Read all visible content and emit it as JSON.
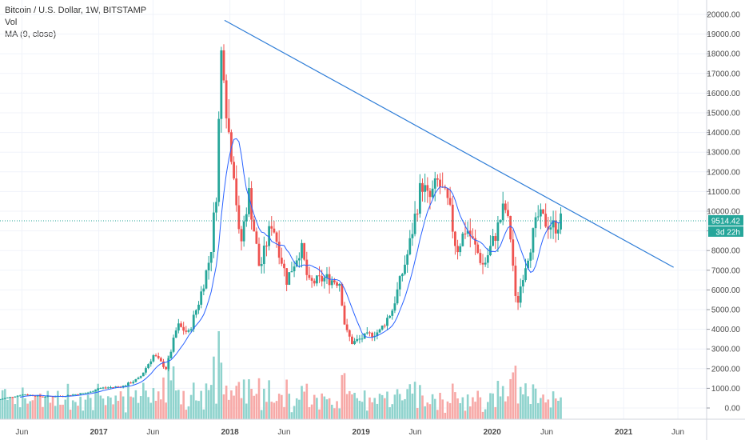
{
  "legend": {
    "title": "Bitcoin / U.S. Dollar, 1W, BITSTAMP",
    "vol_label": "Vol",
    "ma_label": "MA (9, close)"
  },
  "price_axis": {
    "ticks": [
      "20000.00",
      "19000.00",
      "18000.00",
      "17000.00",
      "16000.00",
      "15000.00",
      "14000.00",
      "13000.00",
      "12000.00",
      "11000.00",
      "10000.00",
      "9000.00",
      "8000.00",
      "7000.00",
      "6000.00",
      "5000.00",
      "4000.00",
      "3000.00",
      "2000.00",
      "1000.00",
      "0.00"
    ]
  },
  "last_price": {
    "value": "9514.42",
    "countdown": "3d 22h"
  },
  "time_axis": {
    "labels": [
      "Jun",
      "2017",
      "Jun",
      "2018",
      "Jun",
      "2019",
      "Jun",
      "2020",
      "Jun",
      "2021",
      "Jun"
    ]
  },
  "colors": {
    "up": "#26a69a",
    "down": "#ef5350",
    "vol_up": "#8fd3cd",
    "vol_down": "#f7a9a7",
    "ma": "#2962ff",
    "trendline": "#2e7dd7",
    "last_price_tag": "#26a69a"
  },
  "chart_data": {
    "type": "candlestick",
    "title": "Bitcoin / U.S. Dollar, 1W, BITSTAMP",
    "interval": "1W",
    "ylim": [
      0,
      20500
    ],
    "x_range": [
      "2016-04",
      "2021-08"
    ],
    "price_anchors": [
      [
        "2016-04-01",
        420
      ],
      [
        "2016-06-15",
        700
      ],
      [
        "2016-08-01",
        580
      ],
      [
        "2016-10-01",
        610
      ],
      [
        "2016-12-15",
        800
      ],
      [
        "2017-01-05",
        1000
      ],
      [
        "2017-03-15",
        1100
      ],
      [
        "2017-05-01",
        1500
      ],
      [
        "2017-06-10",
        2700
      ],
      [
        "2017-07-15",
        2000
      ],
      [
        "2017-08-15",
        4200
      ],
      [
        "2017-09-15",
        3800
      ],
      [
        "2017-10-15",
        5500
      ],
      [
        "2017-11-15",
        7800
      ],
      [
        "2017-12-01",
        11000
      ],
      [
        "2017-12-17",
        19000
      ],
      [
        "2018-01-01",
        14500
      ],
      [
        "2018-01-20",
        12000
      ],
      [
        "2018-02-05",
        8000
      ],
      [
        "2018-03-01",
        11000
      ],
      [
        "2018-04-01",
        7000
      ],
      [
        "2018-05-05",
        9500
      ],
      [
        "2018-06-15",
        6500
      ],
      [
        "2018-07-25",
        8200
      ],
      [
        "2018-08-15",
        6300
      ],
      [
        "2018-10-01",
        6600
      ],
      [
        "2018-11-10",
        6400
      ],
      [
        "2018-11-25",
        4000
      ],
      [
        "2018-12-15",
        3300
      ],
      [
        "2019-01-15",
        3600
      ],
      [
        "2019-03-01",
        3900
      ],
      [
        "2019-04-05",
        5000
      ],
      [
        "2019-05-20",
        8000
      ],
      [
        "2019-06-26",
        11500
      ],
      [
        "2019-07-15",
        10500
      ],
      [
        "2019-08-10",
        11500
      ],
      [
        "2019-09-10",
        10200
      ],
      [
        "2019-10-01",
        8000
      ],
      [
        "2019-10-28",
        9200
      ],
      [
        "2019-12-15",
        7200
      ],
      [
        "2020-01-15",
        8700
      ],
      [
        "2020-02-12",
        10300
      ],
      [
        "2020-03-01",
        8500
      ],
      [
        "2020-03-15",
        5000
      ],
      [
        "2020-04-01",
        6700
      ],
      [
        "2020-05-01",
        8800
      ],
      [
        "2020-05-15",
        9700
      ],
      [
        "2020-06-10",
        9400
      ],
      [
        "2020-07-01",
        9200
      ],
      [
        "2020-07-15",
        9514
      ]
    ],
    "ma": {
      "period": 9,
      "source": "close"
    },
    "trendline": {
      "from": [
        "2017-12-17",
        19700
      ],
      "to": [
        "2021-05-20",
        7150
      ]
    },
    "volume": {
      "label": "Vol",
      "max_plot": 3600
    },
    "last": 9514.42
  }
}
